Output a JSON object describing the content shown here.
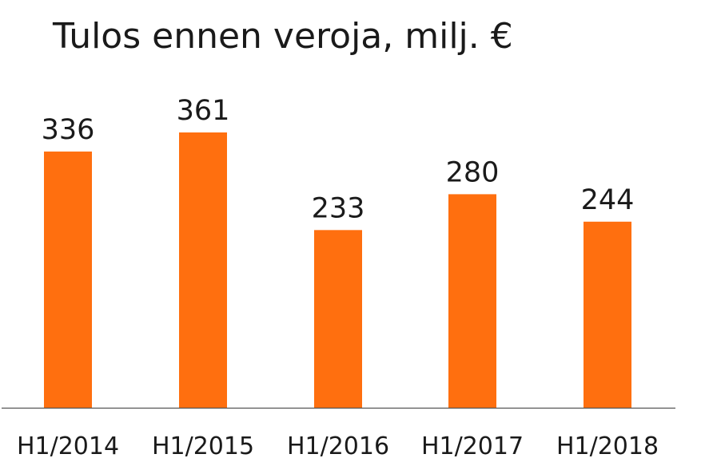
{
  "chart_data": {
    "type": "bar",
    "title": "Tulos ennen veroja, milj. €",
    "xlabel": "",
    "ylabel": "",
    "categories": [
      "H1/2014",
      "H1/2015",
      "H1/2016",
      "H1/2017",
      "H1/2018"
    ],
    "values": [
      336,
      361,
      233,
      280,
      244
    ],
    "data_labels": [
      "336",
      "361",
      "233",
      "280",
      "244"
    ],
    "ylim": [
      0,
      361
    ],
    "grid": false,
    "legend": "none",
    "colors": {
      "bar": "#FF6F0F",
      "axis": "#555555",
      "text": "#1a1a1a"
    }
  }
}
